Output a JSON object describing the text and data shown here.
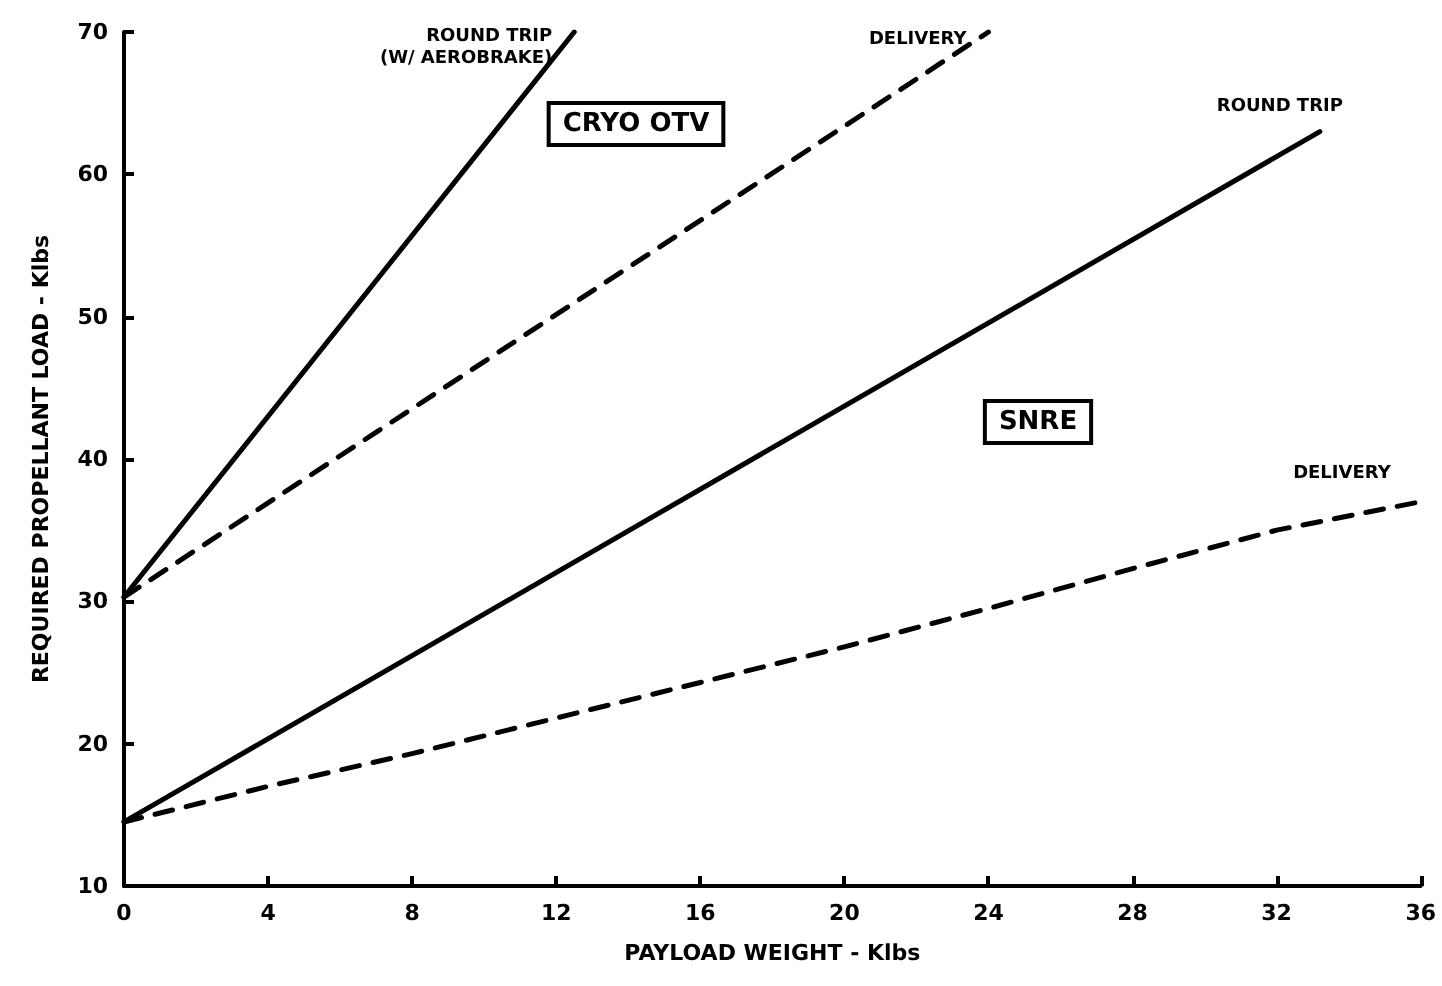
{
  "chart_data": {
    "type": "line",
    "xlabel": "PAYLOAD WEIGHT - Klbs",
    "ylabel": "REQUIRED PROPELLANT LOAD - Klbs",
    "xlim": [
      0,
      36
    ],
    "xticks": [
      0,
      4,
      8,
      12,
      16,
      20,
      24,
      28,
      32,
      36
    ],
    "ylim": [
      10,
      70
    ],
    "yticks": [
      10,
      20,
      30,
      40,
      50,
      60,
      70
    ],
    "grid": false,
    "legend": false,
    "marker": "none",
    "series": [
      {
        "name": "ROUND TRIP\n(W/ AEROBRAKE)",
        "color": "#000000",
        "line_style": "solid",
        "x": [
          0,
          12.5
        ],
        "values": [
          30.3,
          70
        ]
      },
      {
        "name": "DELIVERY",
        "color": "#000000",
        "line_style": "dashed",
        "x": [
          0,
          24
        ],
        "values": [
          30.3,
          70
        ]
      },
      {
        "name": "ROUND TRIP",
        "color": "#000000",
        "line_style": "solid",
        "x": [
          0,
          33.2
        ],
        "values": [
          14.5,
          63
        ]
      },
      {
        "name": "DELIVERY",
        "color": "#000000",
        "line_style": "dashed",
        "x": [
          0,
          4,
          8,
          12,
          16,
          20,
          24,
          28,
          32,
          36
        ],
        "values": [
          14.5,
          17,
          19.3,
          21.8,
          24.3,
          26.8,
          29.5,
          32.3,
          35,
          37
        ]
      }
    ],
    "annotations": [
      "CRYO OTV",
      "SNRE"
    ]
  }
}
